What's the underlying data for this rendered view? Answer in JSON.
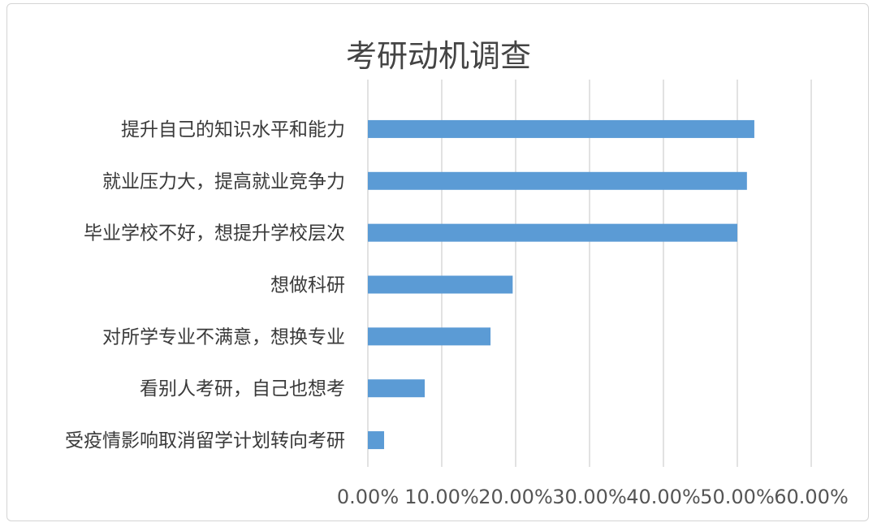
{
  "chart_data": {
    "type": "bar",
    "orientation": "horizontal",
    "title": "考研动机调查",
    "categories": [
      "提升自己的知识水平和能力",
      "就业压力大，提高就业竞争力",
      "毕业学校不好，想提升学校层次",
      "想做科研",
      "对所学专业不满意，想换专业",
      "看别人考研，自己也想考",
      "受疫情影响取消留学计划转向考研"
    ],
    "values": [
      52.3,
      51.3,
      50.0,
      19.6,
      16.6,
      7.7,
      2.2
    ],
    "xlim": [
      0,
      60
    ],
    "xticks": [
      "0.00%",
      "10.00%",
      "20.00%",
      "30.00%",
      "40.00%",
      "50.00%",
      "60.00%"
    ],
    "grid": true,
    "bar_color": "#5b9bd5",
    "grid_color": "#d9d9d9"
  }
}
